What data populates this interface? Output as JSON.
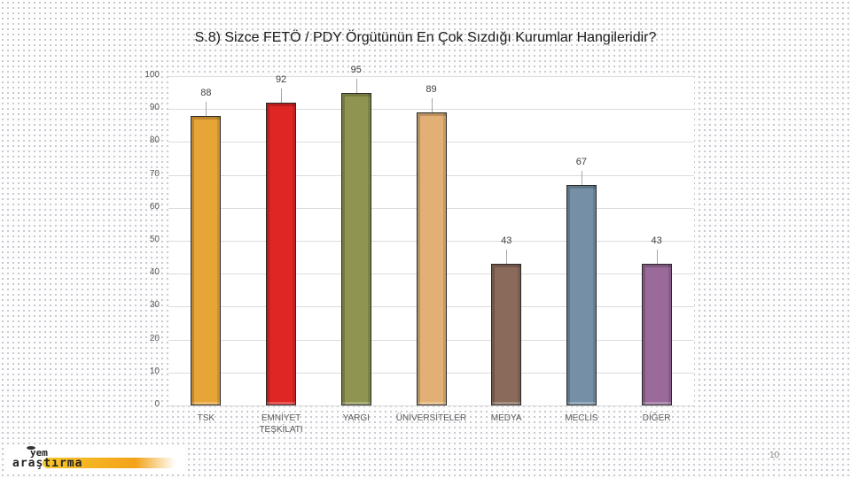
{
  "slide": {
    "title": "S.8) Sizce FETÖ / PDY Örgütünün En Çok Sızdığı Kurumlar Hangileridir?",
    "page_number": "10",
    "logo": {
      "line1": "yem",
      "line2": "araştırma"
    }
  },
  "chart_data": {
    "type": "bar",
    "title": "S.8) Sizce FETÖ / PDY Örgütünün En Çok Sızdığı Kurumlar Hangileridir?",
    "categories": [
      "TSK",
      "EMNİYET TEŞKİLATI",
      "YARGI",
      "ÜNİVERSİTELER",
      "MEDYA",
      "MECLİS",
      "DİĞER"
    ],
    "category_lines": [
      [
        "TSK"
      ],
      [
        "EMNİYET",
        "TEŞKİLATI"
      ],
      [
        "YARGI"
      ],
      [
        "ÜNİVERSİTELER"
      ],
      [
        "MEDYA"
      ],
      [
        "MECLİS"
      ],
      [
        "DİĞER"
      ]
    ],
    "values": [
      88,
      92,
      95,
      89,
      43,
      67,
      43
    ],
    "value_labels": [
      "88",
      "92",
      "95",
      "89",
      "43",
      "67",
      "43"
    ],
    "colors": [
      "#e8a537",
      "#e02525",
      "#8f9550",
      "#e2b074",
      "#8a6a5a",
      "#7590a6",
      "#9a6a9a"
    ],
    "xlabel": "",
    "ylabel": "",
    "ylim": [
      0,
      100
    ],
    "yticks": [
      "0",
      "10",
      "20",
      "30",
      "40",
      "50",
      "60",
      "70",
      "80",
      "90",
      "100"
    ],
    "grid": true,
    "legend": "none"
  }
}
